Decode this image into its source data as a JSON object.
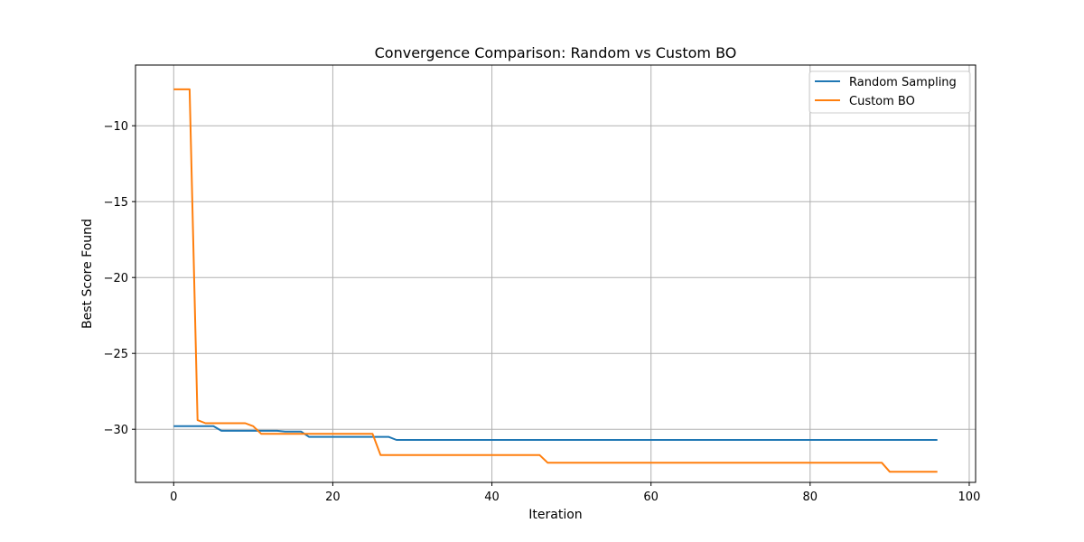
{
  "chart_data": {
    "type": "line",
    "title": "Convergence Comparison: Random vs Custom BO",
    "xlabel": "Iteration",
    "ylabel": "Best Score Found",
    "xlim": [
      -4.8,
      100.8
    ],
    "ylim": [
      -33.5,
      -6.0
    ],
    "xticks": [
      0,
      20,
      40,
      60,
      80,
      100
    ],
    "yticks": [
      -30,
      -25,
      -20,
      -15,
      -10
    ],
    "grid": true,
    "legend_position": "top-right",
    "series": [
      {
        "name": "Random Sampling",
        "color": "#1f77b4",
        "points": [
          [
            0,
            -29.8
          ],
          [
            5,
            -29.8
          ],
          [
            6,
            -30.1
          ],
          [
            13,
            -30.1
          ],
          [
            14,
            -30.15
          ],
          [
            16,
            -30.15
          ],
          [
            17,
            -30.5
          ],
          [
            27,
            -30.5
          ],
          [
            28,
            -30.7
          ],
          [
            96,
            -30.7
          ]
        ]
      },
      {
        "name": "Custom BO",
        "color": "#ff7f0e",
        "points": [
          [
            0,
            -7.6
          ],
          [
            2,
            -7.6
          ],
          [
            3,
            -29.4
          ],
          [
            4,
            -29.6
          ],
          [
            9,
            -29.6
          ],
          [
            10,
            -29.8
          ],
          [
            11,
            -30.3
          ],
          [
            25,
            -30.3
          ],
          [
            26,
            -31.7
          ],
          [
            46,
            -31.7
          ],
          [
            47,
            -32.2
          ],
          [
            89,
            -32.2
          ],
          [
            90,
            -32.8
          ],
          [
            96,
            -32.8
          ]
        ]
      }
    ]
  }
}
